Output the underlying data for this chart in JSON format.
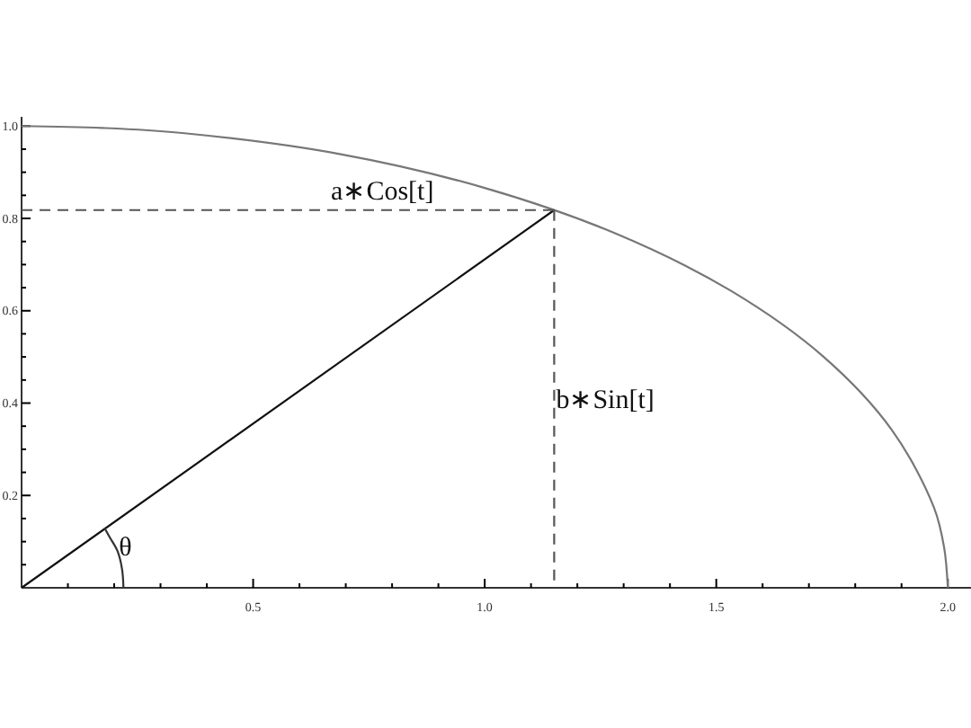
{
  "chart_data": {
    "type": "line",
    "xlim": [
      0,
      2.05
    ],
    "ylim": [
      0,
      1.02
    ],
    "xticks": [
      {
        "value": 0.1,
        "label": null
      },
      {
        "value": 0.2,
        "label": null
      },
      {
        "value": 0.3,
        "label": null
      },
      {
        "value": 0.4,
        "label": null
      },
      {
        "value": 0.5,
        "label": "0.5"
      },
      {
        "value": 0.6,
        "label": null
      },
      {
        "value": 0.7,
        "label": null
      },
      {
        "value": 0.8,
        "label": null
      },
      {
        "value": 0.9,
        "label": null
      },
      {
        "value": 1,
        "label": "1.0"
      },
      {
        "value": 1.1,
        "label": null
      },
      {
        "value": 1.2,
        "label": null
      },
      {
        "value": 1.3,
        "label": null
      },
      {
        "value": 1.4,
        "label": null
      },
      {
        "value": 1.5,
        "label": "1.5"
      },
      {
        "value": 1.6,
        "label": null
      },
      {
        "value": 1.7,
        "label": null
      },
      {
        "value": 1.8,
        "label": null
      },
      {
        "value": 1.9,
        "label": null
      },
      {
        "value": 2,
        "label": "2.0"
      }
    ],
    "yticks": [
      {
        "value": 0.05,
        "label": null
      },
      {
        "value": 0.1,
        "label": null
      },
      {
        "value": 0.15,
        "label": null
      },
      {
        "value": 0.2,
        "label": "0.2"
      },
      {
        "value": 0.25,
        "label": null
      },
      {
        "value": 0.3,
        "label": null
      },
      {
        "value": 0.35,
        "label": null
      },
      {
        "value": 0.4,
        "label": "0.4"
      },
      {
        "value": 0.45,
        "label": null
      },
      {
        "value": 0.5,
        "label": null
      },
      {
        "value": 0.55,
        "label": null
      },
      {
        "value": 0.6,
        "label": "0.6"
      },
      {
        "value": 0.65,
        "label": null
      },
      {
        "value": 0.7,
        "label": null
      },
      {
        "value": 0.75,
        "label": null
      },
      {
        "value": 0.8,
        "label": "0.8"
      },
      {
        "value": 0.85,
        "label": null
      },
      {
        "value": 0.9,
        "label": null
      },
      {
        "value": 0.95,
        "label": null
      },
      {
        "value": 1,
        "label": "1.0"
      }
    ],
    "grid": false,
    "marker": "none",
    "series": [
      {
        "color": "#777777",
        "line_style": "solid",
        "x": [
          2,
          1.992,
          1.97,
          1.879,
          1.732,
          1.532,
          1.286,
          1,
          0.684,
          0.347,
          0.174,
          0
        ],
        "values": [
          0,
          0.087,
          0.174,
          0.342,
          0.5,
          0.643,
          0.766,
          0.866,
          0.94,
          0.985,
          0.996,
          1
        ]
      },
      {
        "color": "#111111",
        "line_style": "solid",
        "x": [
          0,
          1.15
        ],
        "values": [
          0,
          0.818
        ]
      },
      {
        "color": "#555555",
        "line_style": "dashed",
        "x": [
          0,
          1.15
        ],
        "values": [
          0.818,
          0.818
        ]
      },
      {
        "color": "#555555",
        "line_style": "dashed",
        "x": [
          1.15,
          1.15
        ],
        "values": [
          0.818,
          0
        ]
      },
      {
        "color": "#333333",
        "line_style": "solid",
        "x": [
          0.22,
          0.217,
          0.207,
          0.19,
          0.179
        ],
        "values": [
          0,
          0.04,
          0.08,
          0.11,
          0.13
        ]
      }
    ],
    "annotations": [
      {
        "text": "a∗Cos[t]",
        "x": 0.8,
        "y": 0.818
      },
      {
        "text": "b∗Sin[t]",
        "x": 1.15,
        "y": 0.39
      },
      {
        "text": "θ",
        "x": 0.21,
        "y": 0.07
      }
    ]
  }
}
